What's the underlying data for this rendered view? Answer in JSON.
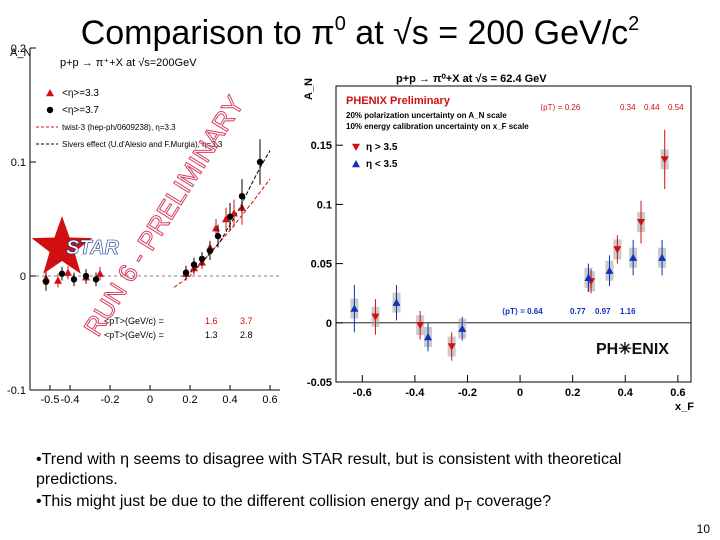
{
  "slide": {
    "title_pre": "Comparison to π",
    "title_sup1": "0",
    "title_mid": " at √s = 200 GeV/c",
    "title_sup2": "2",
    "bullets": [
      {
        "pre": "•Trend with η seems to disagree with STAR result, but is consistent with theoretical predictions.",
        "sub": "",
        "post": ""
      },
      {
        "pre": "•This might just be due to the different collision energy and p",
        "sub": "T",
        "post": " coverage?"
      }
    ],
    "page_number": "10"
  },
  "chart_data": [
    {
      "type": "scatter",
      "name_id": "star",
      "title": "p+p → π⁺+X at √s=200GeV",
      "ylabel": "A_N",
      "xlabel": "",
      "xlim": [
        -0.6,
        0.65
      ],
      "ylim": [
        -0.1,
        0.2
      ],
      "y_ticks": [
        -0.1,
        0,
        0.1,
        0.2
      ],
      "y_tick_labels": [
        "-0.1",
        "0",
        "0.1",
        "0.2"
      ],
      "x_ticks": [
        -0.5,
        -0.4,
        -0.2,
        0,
        0.2,
        0.4,
        0.6
      ],
      "x_tick_labels": [
        "-0.5",
        "-0.4",
        "-0.2",
        "0",
        "0.2",
        "0.4",
        "0.6"
      ],
      "legend": [
        "<η>=3.3",
        "<η>=3.7",
        "twist-3 (hep-ph/0609238), η=3.3",
        "Sivers effect (U.d'Alesio and F.Murgia), η=3.3"
      ],
      "star_label": "STAR",
      "watermark": "RUN 6 - PRELIMINARY",
      "pt_label": "<pT>(GeV/c) =",
      "pt_values_red": [
        "1.6",
        "3.7"
      ],
      "pt_values_black": [
        "1.3",
        "2.8"
      ],
      "series": [
        {
          "name": "<η>=3.3",
          "color": "#d01010",
          "marker": "triangle",
          "x": [
            -0.52,
            -0.46,
            -0.41,
            -0.32,
            -0.25,
            0.18,
            0.22,
            0.26,
            0.3,
            0.33,
            0.38,
            0.42,
            0.46
          ],
          "y": [
            -0.002,
            -0.004,
            0.003,
            -0.001,
            0.002,
            0.002,
            0.007,
            0.012,
            0.025,
            0.042,
            0.05,
            0.055,
            0.06
          ],
          "err": [
            0.006,
            0.006,
            0.006,
            0.006,
            0.006,
            0.006,
            0.006,
            0.006,
            0.006,
            0.008,
            0.01,
            0.012,
            0.015
          ]
        },
        {
          "name": "<η>=3.7",
          "color": "#000000",
          "marker": "circle",
          "x": [
            -0.52,
            -0.44,
            -0.38,
            -0.32,
            -0.27,
            0.18,
            0.22,
            0.26,
            0.3,
            0.34,
            0.4,
            0.46,
            0.55
          ],
          "y": [
            -0.005,
            0.002,
            -0.003,
            0.0,
            -0.003,
            0.003,
            0.01,
            0.015,
            0.022,
            0.035,
            0.052,
            0.07,
            0.1
          ],
          "err": [
            0.008,
            0.006,
            0.006,
            0.006,
            0.006,
            0.006,
            0.006,
            0.006,
            0.008,
            0.01,
            0.012,
            0.015,
            0.02
          ]
        }
      ],
      "curves": [
        {
          "name": "twist-3 (hep-ph/0609238), η=3.3",
          "color": "#d01010",
          "x": [
            0.12,
            0.2,
            0.3,
            0.4,
            0.5,
            0.6
          ],
          "y": [
            -0.01,
            0.0,
            0.02,
            0.04,
            0.062,
            0.085
          ]
        },
        {
          "name": "Sivers effect (U.d'Alesio and F.Murgia), η=3.3",
          "color": "#000000",
          "x": [
            0.18,
            0.25,
            0.3,
            0.35,
            0.4,
            0.45,
            0.5,
            0.55,
            0.6
          ],
          "y": [
            0.0,
            0.01,
            0.02,
            0.03,
            0.045,
            0.06,
            0.078,
            0.095,
            0.11
          ]
        }
      ]
    },
    {
      "type": "scatter",
      "name_id": "phenix",
      "title": "p+p → π⁰+X at √s = 62.4 GeV",
      "ylabel": "A_N",
      "xlabel": "x_F",
      "xlim": [
        -0.7,
        0.65
      ],
      "ylim": [
        -0.05,
        0.2
      ],
      "y_ticks": [
        -0.05,
        0,
        0.05,
        0.1,
        0.15
      ],
      "y_tick_labels": [
        "-0.05",
        "0",
        "0.05",
        "0.1",
        "0.15"
      ],
      "x_ticks": [
        -0.6,
        -0.4,
        -0.2,
        0,
        0.2,
        0.4,
        0.6
      ],
      "x_tick_labels": [
        "-0.6",
        "-0.4",
        "-0.2",
        "0",
        "0.2",
        "0.4",
        "0.6"
      ],
      "preliminary": "PHENIX Preliminary",
      "notes": [
        "20% polarization uncertainty on A_N scale",
        "10% energy calibration uncertainty on x_F scale"
      ],
      "pt_top": {
        "label": "⟨pT⟩ = 0.26",
        "values": [
          "0.34",
          "0.44",
          "0.54"
        ]
      },
      "pt_bottom": {
        "label": "⟨pT⟩ = 0.64",
        "values": [
          "0.77",
          "0.97",
          "1.16"
        ]
      },
      "legend": [
        "η > 3.5",
        "η < 3.5"
      ],
      "logo": "PH✳ENIX",
      "series": [
        {
          "name": "η > 3.5",
          "color": "#d01010",
          "marker": "triangle-down",
          "x": [
            -0.55,
            -0.38,
            -0.26,
            0.27,
            0.37,
            0.46,
            0.55
          ],
          "y": [
            0.005,
            -0.002,
            -0.02,
            0.035,
            0.062,
            0.085,
            0.138
          ],
          "err": [
            0.015,
            0.012,
            0.012,
            0.01,
            0.012,
            0.018,
            0.025
          ]
        },
        {
          "name": "η < 3.5",
          "color": "#1030c0",
          "marker": "triangle",
          "x": [
            -0.63,
            -0.47,
            -0.35,
            -0.22,
            0.26,
            0.34,
            0.43,
            0.54
          ],
          "y": [
            0.012,
            0.017,
            -0.012,
            -0.005,
            0.038,
            0.044,
            0.055,
            0.055
          ],
          "err": [
            0.02,
            0.015,
            0.012,
            0.01,
            0.012,
            0.013,
            0.015,
            0.015
          ]
        }
      ]
    }
  ]
}
